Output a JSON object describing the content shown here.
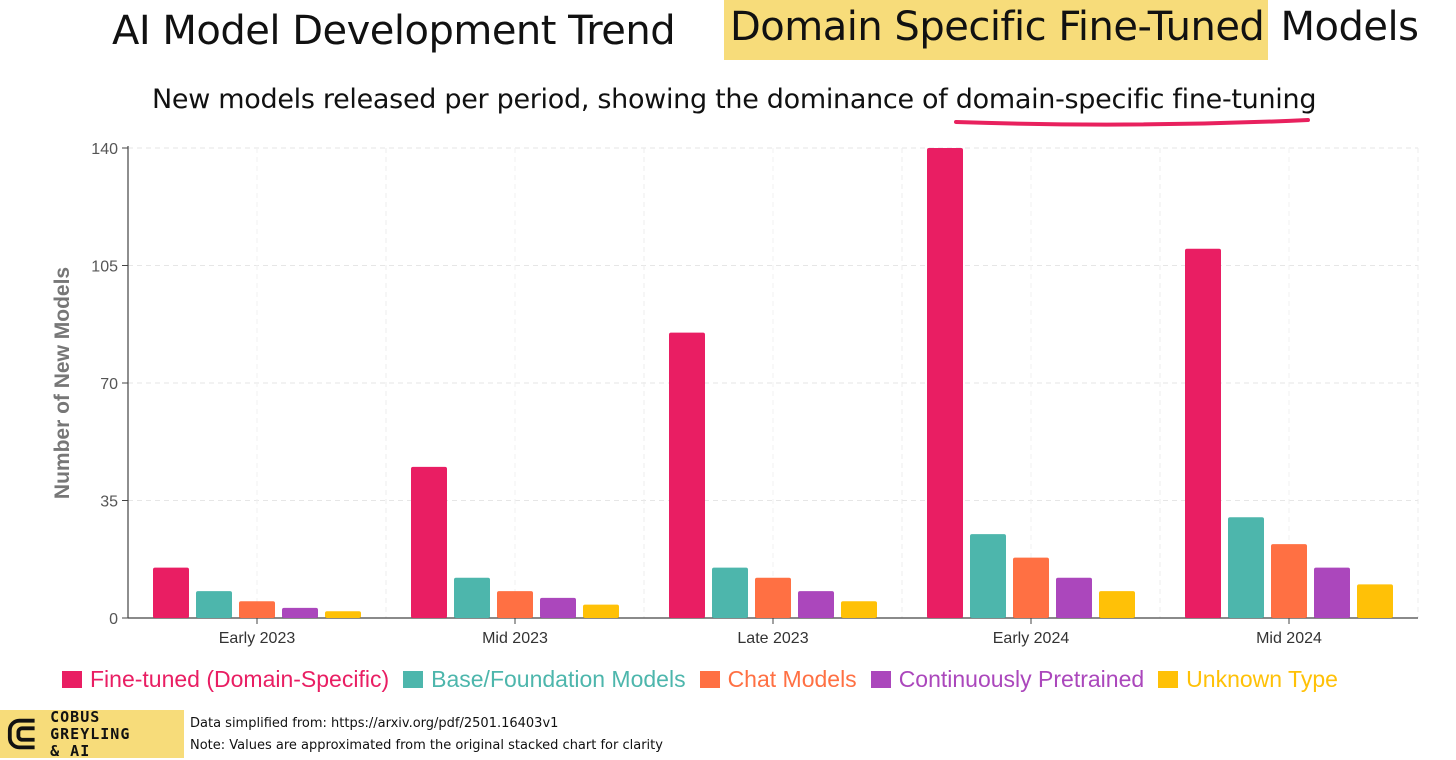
{
  "header": {
    "title_left": "AI Model Development Trend",
    "title_highlight": "Domain Specific Fine-Tuned",
    "title_right_rest": "Models",
    "subtitle_prefix": "New models released per period, showing the dominance of ",
    "subtitle_underlined": "domain-specific fine-tuning",
    "highlight_color": "#f7dc7a",
    "underline_color": "#e8215e"
  },
  "chart_data": {
    "type": "bar",
    "ylabel": "Number of New Models",
    "xlabel": "",
    "ylim": [
      0,
      140
    ],
    "yticks": [
      0,
      35,
      70,
      105,
      140
    ],
    "grid": true,
    "legend_position": "bottom",
    "categories": [
      "Early 2023",
      "Mid 2023",
      "Late 2023",
      "Early 2024",
      "Mid 2024"
    ],
    "series": [
      {
        "name": "Fine-tuned (Domain-Specific)",
        "color": "#e91e63",
        "values": [
          15,
          45,
          85,
          140,
          110
        ]
      },
      {
        "name": "Base/Foundation Models",
        "color": "#4db6ac",
        "values": [
          8,
          12,
          15,
          25,
          30
        ]
      },
      {
        "name": "Chat Models",
        "color": "#ff7043",
        "values": [
          5,
          8,
          12,
          18,
          22
        ]
      },
      {
        "name": "Continuously Pretrained",
        "color": "#ab47bc",
        "values": [
          3,
          6,
          8,
          12,
          15
        ]
      },
      {
        "name": "Unknown Type",
        "color": "#ffc107",
        "values": [
          2,
          4,
          5,
          8,
          10
        ]
      }
    ]
  },
  "footer": {
    "logo_line1": "COBUS GREYLING",
    "logo_line2": "& AI",
    "source_note": "Data simplified from: https://arxiv.org/pdf/2501.16403v1",
    "approx_note": "Note: Values are approximated from the original stacked chart for clarity"
  }
}
